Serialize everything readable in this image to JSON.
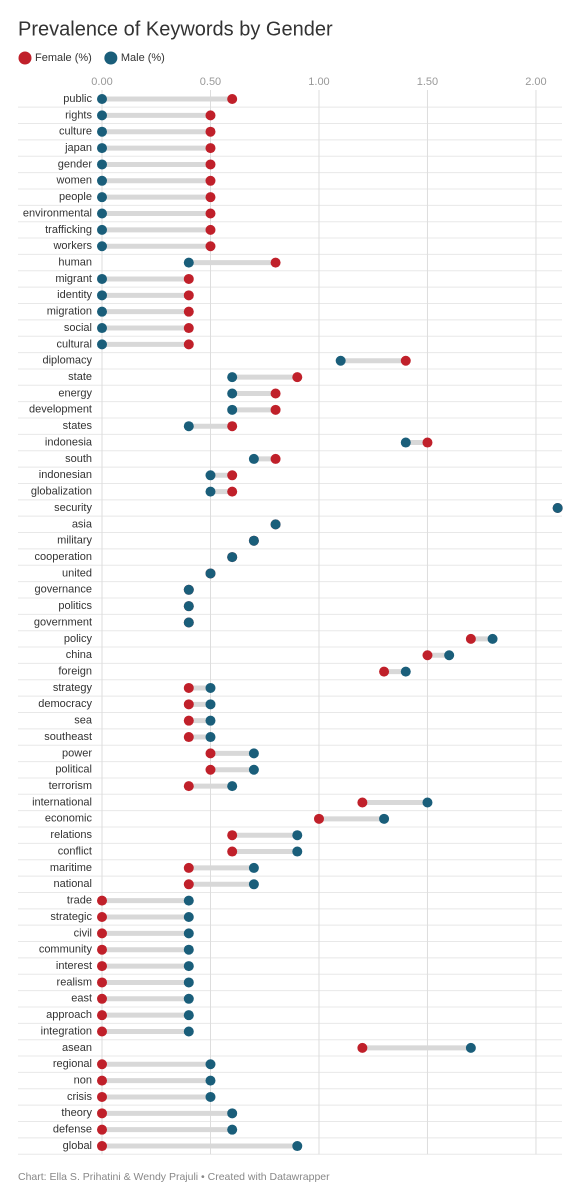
{
  "chart_data": {
    "type": "dot",
    "title": "Prevalence of Keywords by Gender",
    "credit": "Chart: Ella S. Prihatini & Wendy Prajuli • Created with Datawrapper",
    "categories": [
      "public",
      "rights",
      "culture",
      "japan",
      "gender",
      "women",
      "people",
      "environmental",
      "trafficking",
      "workers",
      "human",
      "migrant",
      "identity",
      "migration",
      "social",
      "cultural",
      "diplomacy",
      "state",
      "energy",
      "development",
      "states",
      "indonesia",
      "south",
      "indonesian",
      "globalization",
      "security",
      "asia",
      "military",
      "cooperation",
      "united",
      "governance",
      "politics",
      "government",
      "policy",
      "china",
      "foreign",
      "strategy",
      "democracy",
      "sea",
      "southeast",
      "power",
      "political",
      "terrorism",
      "international",
      "economic",
      "relations",
      "conflict",
      "maritime",
      "national",
      "trade",
      "strategic",
      "civil",
      "community",
      "interest",
      "realism",
      "east",
      "approach",
      "integration",
      "asean",
      "regional",
      "non",
      "crisis",
      "theory",
      "defense",
      "global"
    ],
    "series": [
      {
        "name": "Female (%)",
        "color": "#c0202a",
        "values": [
          0.6,
          0.5,
          0.5,
          0.5,
          0.5,
          0.5,
          0.5,
          0.5,
          0.5,
          0.5,
          0.8,
          0.4,
          0.4,
          0.4,
          0.4,
          0.4,
          1.4,
          0.9,
          0.8,
          0.8,
          0.6,
          1.5,
          0.8,
          0.6,
          0.6,
          2.1,
          0.8,
          0.7,
          0.6,
          0.5,
          0.4,
          0.4,
          0.4,
          1.7,
          1.5,
          1.3,
          0.4,
          0.4,
          0.4,
          0.4,
          0.5,
          0.5,
          0.4,
          1.2,
          1.0,
          0.6,
          0.6,
          0.4,
          0.4,
          0,
          0,
          0,
          0,
          0,
          0,
          0,
          0,
          0,
          1.2,
          0,
          0,
          0,
          0,
          0,
          0
        ]
      },
      {
        "name": "Male (%)",
        "color": "#1a5e7a",
        "values": [
          0,
          0,
          0,
          0,
          0,
          0,
          0,
          0,
          0,
          0,
          0.4,
          0,
          0,
          0,
          0,
          0,
          1.1,
          0.6,
          0.6,
          0.6,
          0.4,
          1.4,
          0.7,
          0.5,
          0.5,
          2.1,
          0.8,
          0.7,
          0.6,
          0.5,
          0.4,
          0.4,
          0.4,
          1.8,
          1.6,
          1.4,
          0.5,
          0.5,
          0.5,
          0.5,
          0.7,
          0.7,
          0.6,
          1.5,
          1.3,
          0.9,
          0.9,
          0.7,
          0.7,
          0.4,
          0.4,
          0.4,
          0.4,
          0.4,
          0.4,
          0.4,
          0.4,
          0.4,
          1.7,
          0.5,
          0.5,
          0.5,
          0.6,
          0.6,
          0.9
        ]
      }
    ],
    "xlim": [
      0,
      2.12
    ],
    "xticks": [
      {
        "value": 0,
        "label": "0.00"
      },
      {
        "value": 0.5,
        "label": "0.50"
      },
      {
        "value": 1,
        "label": "1.00"
      },
      {
        "value": 1.5,
        "label": "1.50"
      },
      {
        "value": 2,
        "label": "2.00"
      }
    ],
    "grid": true
  }
}
